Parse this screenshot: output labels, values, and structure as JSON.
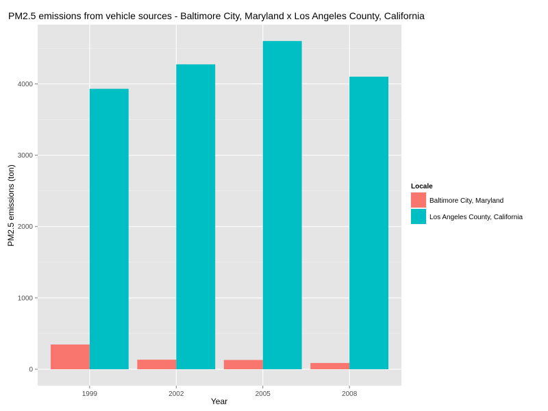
{
  "chart_data": {
    "type": "bar",
    "title": "PM2.5 emissions from vehicle sources - Baltimore City, Maryland x Los Angeles County, California",
    "xlabel": "Year",
    "ylabel": "PM2.5 emissions (ton)",
    "categories": [
      "1999",
      "2002",
      "2005",
      "2008"
    ],
    "series": [
      {
        "name": "Baltimore City, Maryland",
        "color": "#F8766D",
        "values": [
          347,
          134,
          130,
          88
        ]
      },
      {
        "name": "Los Angeles County, California",
        "color": "#00BFC4",
        "values": [
          3931,
          4274,
          4601,
          4101
        ]
      }
    ],
    "y_ticks": [
      "0",
      "1000",
      "2000",
      "3000",
      "4000"
    ],
    "ylim": [
      -230,
      4830
    ],
    "grid": true,
    "legend": {
      "title": "Locale",
      "placement": "right"
    },
    "colors": {
      "panel": "#E5E5E5",
      "grid_major": "#FFFFFF",
      "grid_minor": "#F2F2F2"
    }
  }
}
